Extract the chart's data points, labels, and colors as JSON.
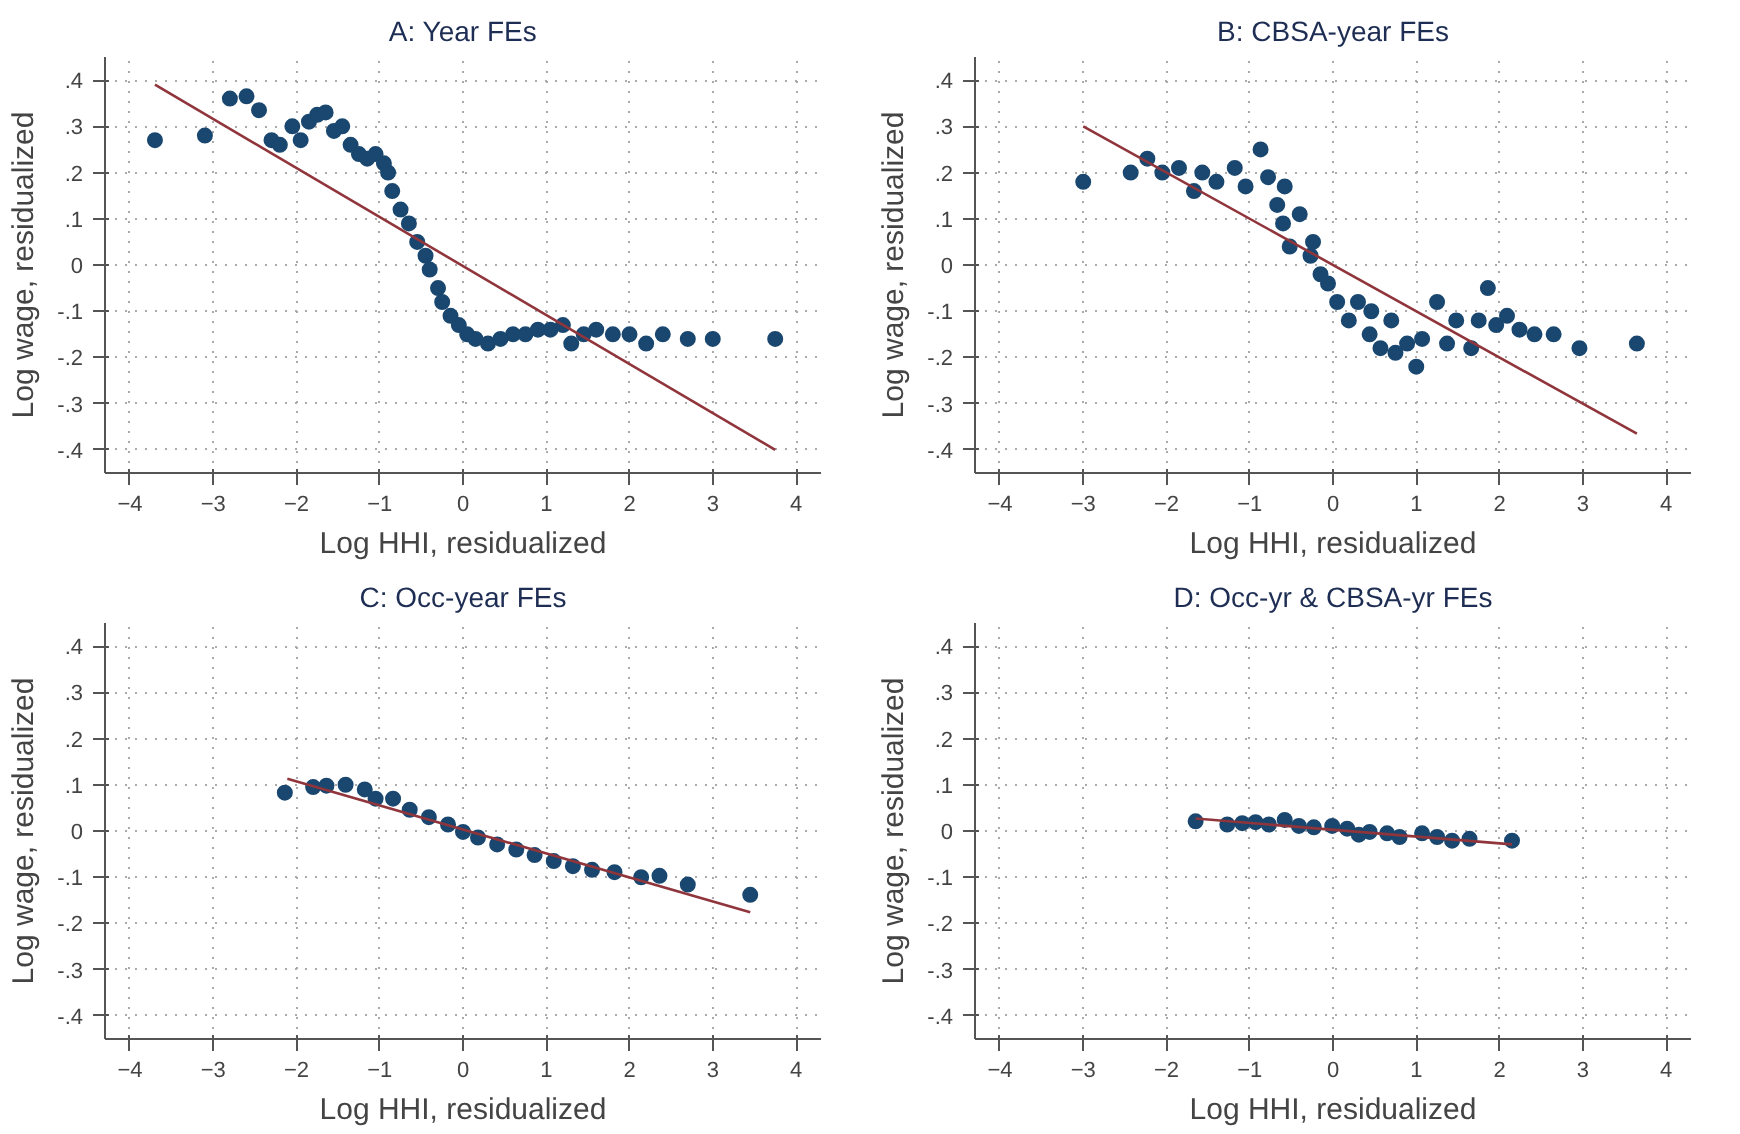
{
  "chart_data": [
    {
      "type": "scatter",
      "title": "A: Year FEs",
      "xlabel": "Log HHI, residualized",
      "ylabel": "Log wage, residualized",
      "xlim": [
        -4.3,
        4.3
      ],
      "ylim": [
        -0.45,
        0.45
      ],
      "xticks": [
        -4,
        -3,
        -2,
        -1,
        0,
        1,
        2,
        3,
        4
      ],
      "yticks": [
        {
          "value": -0.4,
          "label": "-.4"
        },
        {
          "value": -0.3,
          "label": "-.3"
        },
        {
          "value": -0.2,
          "label": "-.2"
        },
        {
          "value": -0.1,
          "label": "-.1"
        },
        {
          "value": 0,
          "label": "0"
        },
        {
          "value": 0.1,
          "label": ".1"
        },
        {
          "value": 0.2,
          "label": ".2"
        },
        {
          "value": 0.3,
          "label": ".3"
        },
        {
          "value": 0.4,
          "label": ".4"
        }
      ],
      "grid": true,
      "series": [
        {
          "marker": "circle",
          "color": "#1a476f",
          "x": [
            -3.7,
            -3.1,
            -2.8,
            -2.6,
            -2.45,
            -2.3,
            -2.2,
            -2.05,
            -1.95,
            -1.85,
            -1.75,
            -1.65,
            -1.55,
            -1.45,
            -1.35,
            -1.25,
            -1.15,
            -1.05,
            -0.95,
            -0.9,
            -0.85,
            -0.75,
            -0.65,
            -0.55,
            -0.45,
            -0.4,
            -0.3,
            -0.25,
            -0.15,
            -0.05,
            0.05,
            0.15,
            0.3,
            0.45,
            0.6,
            0.75,
            0.9,
            1.05,
            1.2,
            1.3,
            1.45,
            1.6,
            1.8,
            2.0,
            2.2,
            2.4,
            2.7,
            3.0,
            3.75
          ],
          "values": [
            0.27,
            0.28,
            0.36,
            0.365,
            0.335,
            0.27,
            0.26,
            0.3,
            0.27,
            0.31,
            0.325,
            0.33,
            0.29,
            0.3,
            0.26,
            0.24,
            0.23,
            0.24,
            0.22,
            0.2,
            0.16,
            0.12,
            0.09,
            0.05,
            0.02,
            -0.01,
            -0.05,
            -0.08,
            -0.11,
            -0.13,
            -0.15,
            -0.16,
            -0.17,
            -0.16,
            -0.15,
            -0.15,
            -0.14,
            -0.14,
            -0.13,
            -0.17,
            -0.15,
            -0.14,
            -0.15,
            -0.15,
            -0.17,
            -0.15,
            -0.16,
            -0.16,
            -0.16
          ]
        },
        {
          "type": "line",
          "marker": "none",
          "color": "#90353b",
          "line_style": "solid",
          "x": [
            -3.7,
            3.75
          ],
          "values": [
            0.39,
            -0.4
          ]
        }
      ]
    },
    {
      "type": "scatter",
      "title": "B: CBSA-year FEs",
      "xlabel": "Log HHI, residualized",
      "ylabel": "Log wage, residualized",
      "xlim": [
        -4.3,
        4.3
      ],
      "ylim": [
        -0.45,
        0.45
      ],
      "xticks": [
        -4,
        -3,
        -2,
        -1,
        0,
        1,
        2,
        3,
        4
      ],
      "yticks": [
        {
          "value": -0.4,
          "label": "-.4"
        },
        {
          "value": -0.3,
          "label": "-.3"
        },
        {
          "value": -0.2,
          "label": "-.2"
        },
        {
          "value": -0.1,
          "label": "-.1"
        },
        {
          "value": 0,
          "label": "0"
        },
        {
          "value": 0.1,
          "label": ".1"
        },
        {
          "value": 0.2,
          "label": ".2"
        },
        {
          "value": 0.3,
          "label": ".3"
        },
        {
          "value": 0.4,
          "label": ".4"
        }
      ],
      "grid": true,
      "series": [
        {
          "marker": "circle",
          "color": "#1a476f",
          "x": [
            -3.0,
            -2.43,
            -2.23,
            -2.05,
            -1.85,
            -1.67,
            -1.57,
            -1.4,
            -1.18,
            -1.05,
            -0.87,
            -0.78,
            -0.58,
            -0.67,
            -0.6,
            -0.4,
            -0.52,
            -0.24,
            -0.27,
            -0.15,
            -0.06,
            0.05,
            0.19,
            0.3,
            0.44,
            0.46,
            0.57,
            0.7,
            0.75,
            0.89,
            1.0,
            1.07,
            1.25,
            1.37,
            1.48,
            1.66,
            1.75,
            1.86,
            1.96,
            2.09,
            2.24,
            2.42,
            2.65,
            2.96,
            3.65
          ],
          "values": [
            0.18,
            0.2,
            0.23,
            0.2,
            0.21,
            0.16,
            0.2,
            0.18,
            0.21,
            0.17,
            0.25,
            0.19,
            0.17,
            0.13,
            0.09,
            0.11,
            0.04,
            0.05,
            0.02,
            -0.02,
            -0.04,
            -0.08,
            -0.12,
            -0.08,
            -0.15,
            -0.1,
            -0.18,
            -0.12,
            -0.19,
            -0.17,
            -0.22,
            -0.16,
            -0.08,
            -0.17,
            -0.12,
            -0.18,
            -0.12,
            -0.05,
            -0.13,
            -0.11,
            -0.14,
            -0.15,
            -0.15,
            -0.18,
            -0.17
          ]
        },
        {
          "type": "line",
          "marker": "none",
          "color": "#90353b",
          "line_style": "solid",
          "x": [
            -3.0,
            3.65
          ],
          "values": [
            0.3,
            -0.365
          ]
        }
      ]
    },
    {
      "type": "scatter",
      "title": "C: Occ-year FEs",
      "xlabel": "Log HHI, residualized",
      "ylabel": "Log wage, residualized",
      "xlim": [
        -4.3,
        4.3
      ],
      "ylim": [
        -0.45,
        0.45
      ],
      "xticks": [
        -4,
        -3,
        -2,
        -1,
        0,
        1,
        2,
        3,
        4
      ],
      "yticks": [
        {
          "value": -0.4,
          "label": "-.4"
        },
        {
          "value": -0.3,
          "label": "-.3"
        },
        {
          "value": -0.2,
          "label": "-.2"
        },
        {
          "value": -0.1,
          "label": "-.1"
        },
        {
          "value": 0,
          "label": "0"
        },
        {
          "value": 0.1,
          "label": ".1"
        },
        {
          "value": 0.2,
          "label": ".2"
        },
        {
          "value": 0.3,
          "label": ".3"
        },
        {
          "value": 0.4,
          "label": ".4"
        }
      ],
      "grid": true,
      "series": [
        {
          "marker": "circle",
          "color": "#1a476f",
          "x": [
            -2.14,
            -1.8,
            -1.64,
            -1.41,
            -1.18,
            -1.05,
            -0.84,
            -0.64,
            -0.41,
            -0.18,
            0.0,
            0.18,
            0.41,
            0.64,
            0.86,
            1.09,
            1.32,
            1.55,
            1.82,
            2.14,
            2.36,
            2.7,
            3.45
          ],
          "values": [
            0.083,
            0.095,
            0.098,
            0.1,
            0.09,
            0.07,
            0.07,
            0.046,
            0.03,
            0.014,
            -0.002,
            -0.014,
            -0.029,
            -0.04,
            -0.052,
            -0.065,
            -0.076,
            -0.084,
            -0.089,
            -0.1,
            -0.097,
            -0.116,
            -0.138
          ]
        },
        {
          "type": "line",
          "marker": "none",
          "color": "#90353b",
          "line_style": "solid",
          "x": [
            -2.11,
            3.45
          ],
          "values": [
            0.113,
            -0.176
          ]
        }
      ]
    },
    {
      "type": "scatter",
      "title": "D: Occ-yr & CBSA-yr FEs",
      "xlabel": "Log HHI, residualized",
      "ylabel": "Log wage, residualized",
      "xlim": [
        -4.3,
        4.3
      ],
      "ylim": [
        -0.45,
        0.45
      ],
      "xticks": [
        -4,
        -3,
        -2,
        -1,
        0,
        1,
        2,
        3,
        4
      ],
      "yticks": [
        {
          "value": -0.4,
          "label": "-.4"
        },
        {
          "value": -0.3,
          "label": "-.3"
        },
        {
          "value": -0.2,
          "label": "-.2"
        },
        {
          "value": -0.1,
          "label": "-.1"
        },
        {
          "value": 0,
          "label": "0"
        },
        {
          "value": 0.1,
          "label": ".1"
        },
        {
          "value": 0.2,
          "label": ".2"
        },
        {
          "value": 0.3,
          "label": ".3"
        },
        {
          "value": 0.4,
          "label": ".4"
        }
      ],
      "grid": true,
      "series": [
        {
          "marker": "circle",
          "color": "#1a476f",
          "x": [
            -1.65,
            -1.27,
            -1.09,
            -0.93,
            -0.77,
            -0.58,
            -0.41,
            -0.23,
            -0.01,
            0.17,
            0.31,
            0.44,
            0.65,
            0.8,
            1.07,
            1.25,
            1.43,
            1.64,
            2.15
          ],
          "values": [
            0.021,
            0.014,
            0.017,
            0.019,
            0.014,
            0.024,
            0.011,
            0.008,
            0.011,
            0.005,
            -0.008,
            -0.002,
            -0.005,
            -0.013,
            -0.005,
            -0.013,
            -0.021,
            -0.017,
            -0.021
          ]
        },
        {
          "type": "line",
          "marker": "none",
          "color": "#90353b",
          "line_style": "solid",
          "x": [
            -1.65,
            2.15
          ],
          "values": [
            0.027,
            -0.029
          ]
        }
      ]
    }
  ]
}
